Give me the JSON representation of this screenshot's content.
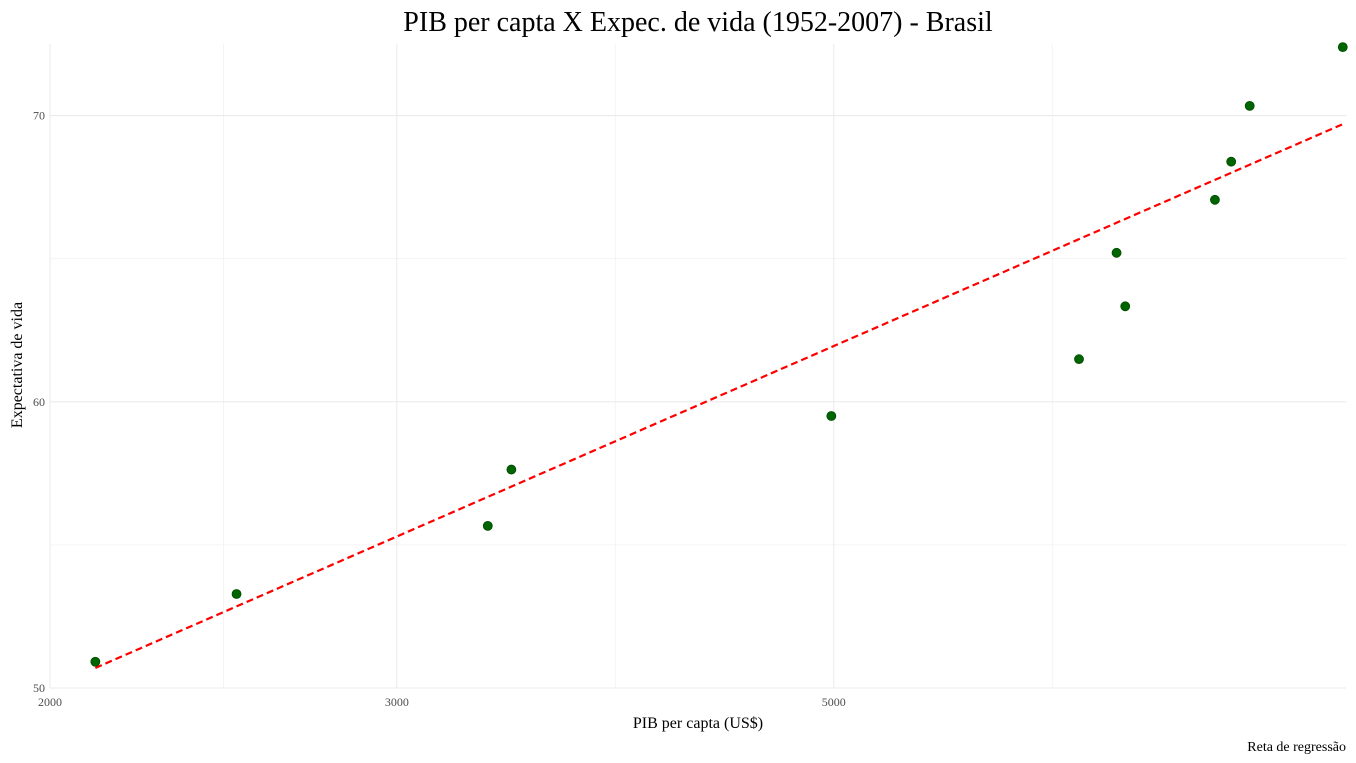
{
  "chart_data": {
    "type": "scatter",
    "title": "PIB per capta X Expec. de vida (1952-2007) - Brasil",
    "xlabel": "PIB per capta (US$)",
    "ylabel": "Expectativa de vida",
    "caption": "Reta de regressão",
    "x_scale": "log10",
    "xlim": [
      2000,
      9100
    ],
    "ylim": [
      50,
      72.5
    ],
    "x_ticks": [
      2000,
      3000,
      5000
    ],
    "x_tick_labels": [
      "2000",
      "3000",
      "5000"
    ],
    "y_ticks": [
      50,
      60,
      70
    ],
    "y_tick_labels": [
      "50",
      "60",
      "70"
    ],
    "grid": true,
    "point_color": "#006400",
    "line_color": "#ff0000",
    "points": [
      {
        "x": 2108.9,
        "y": 50.917
      },
      {
        "x": 2487.4,
        "y": 53.285
      },
      {
        "x": 3336.6,
        "y": 55.665
      },
      {
        "x": 3429.9,
        "y": 57.632
      },
      {
        "x": 4985.7,
        "y": 59.504
      },
      {
        "x": 6660.1,
        "y": 61.489
      },
      {
        "x": 7030.0,
        "y": 63.336
      },
      {
        "x": 6959.0,
        "y": 65.205
      },
      {
        "x": 7807.1,
        "y": 67.057
      },
      {
        "x": 7957.0,
        "y": 68.388
      },
      {
        "x": 8131.2,
        "y": 70.339
      },
      {
        "x": 9065.8,
        "y": 72.39
      }
    ],
    "regression_line": {
      "x": [
        2108.9,
        9065.8
      ],
      "y": [
        50.7,
        69.7
      ]
    }
  }
}
